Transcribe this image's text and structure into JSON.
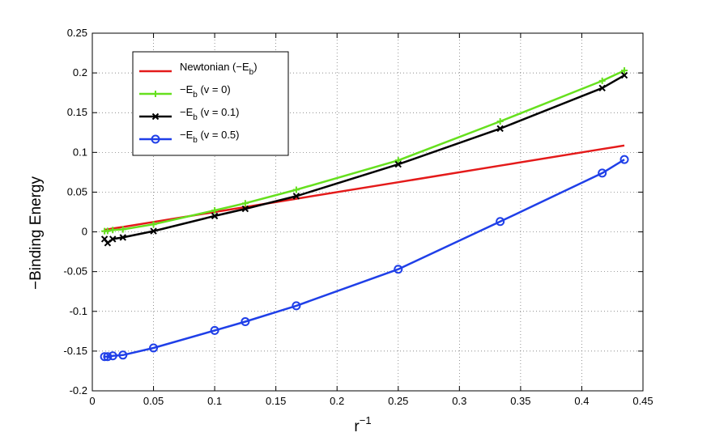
{
  "chart_data": {
    "type": "line",
    "xlabel": "r",
    "xlabel_superscript": "−1",
    "ylabel": "−Binding Energy",
    "xlim": [
      0,
      0.45
    ],
    "ylim": [
      -0.2,
      0.25
    ],
    "x_ticks": [
      "0",
      "0.05",
      "0.1",
      "0.15",
      "0.2",
      "0.25",
      "0.3",
      "0.35",
      "0.4",
      "0.45"
    ],
    "y_ticks": [
      "-0.2",
      "-0.15",
      "-0.1",
      "-0.05",
      "0",
      "0.05",
      "0.1",
      "0.15",
      "0.2",
      "0.25"
    ],
    "grid": true,
    "legend_position": "top-left",
    "series": [
      {
        "legend_main": "Newtonian (−E",
        "legend_sub": "b",
        "legend_tail": ")",
        "color": "#e41a1a",
        "marker": "none",
        "x": [
          0.01,
          0.0125,
          0.0167,
          0.025,
          0.05,
          0.1,
          0.125,
          0.1667,
          0.25,
          0.3333,
          0.4167,
          0.4348
        ],
        "y": [
          0.0025,
          0.0031,
          0.0042,
          0.0062,
          0.0125,
          0.025,
          0.0312,
          0.0417,
          0.0625,
          0.0833,
          0.1042,
          0.1087
        ]
      },
      {
        "legend_main": "−E",
        "legend_sub": "b",
        "legend_tail": " (v = 0)",
        "color": "#66e01e",
        "marker": "plus",
        "x": [
          0.01,
          0.0125,
          0.0167,
          0.025,
          0.05,
          0.1,
          0.125,
          0.1667,
          0.25,
          0.3333,
          0.4167,
          0.4348
        ],
        "y": [
          0.001,
          0.0012,
          0.0023,
          0.0031,
          0.0095,
          0.027,
          0.036,
          0.053,
          0.09,
          0.139,
          0.19,
          0.203
        ]
      },
      {
        "legend_main": "−E",
        "legend_sub": "b",
        "legend_tail": " (v = 0.1)",
        "color": "#000000",
        "marker": "x",
        "x": [
          0.01,
          0.0125,
          0.0167,
          0.025,
          0.05,
          0.1,
          0.125,
          0.1667,
          0.25,
          0.3333,
          0.4167,
          0.4348
        ],
        "y": [
          -0.009,
          -0.014,
          -0.009,
          -0.007,
          0.001,
          0.02,
          0.029,
          0.045,
          0.085,
          0.13,
          0.181,
          0.197
        ]
      },
      {
        "legend_main": "−E",
        "legend_sub": "b",
        "legend_tail": " (v = 0.5)",
        "color": "#1f3fe8",
        "marker": "circle",
        "x": [
          0.01,
          0.0125,
          0.0167,
          0.025,
          0.05,
          0.1,
          0.125,
          0.1667,
          0.25,
          0.3333,
          0.4167,
          0.4348
        ],
        "y": [
          -0.157,
          -0.157,
          -0.156,
          -0.155,
          -0.146,
          -0.124,
          -0.113,
          -0.093,
          -0.047,
          0.013,
          0.074,
          0.091
        ]
      }
    ]
  }
}
